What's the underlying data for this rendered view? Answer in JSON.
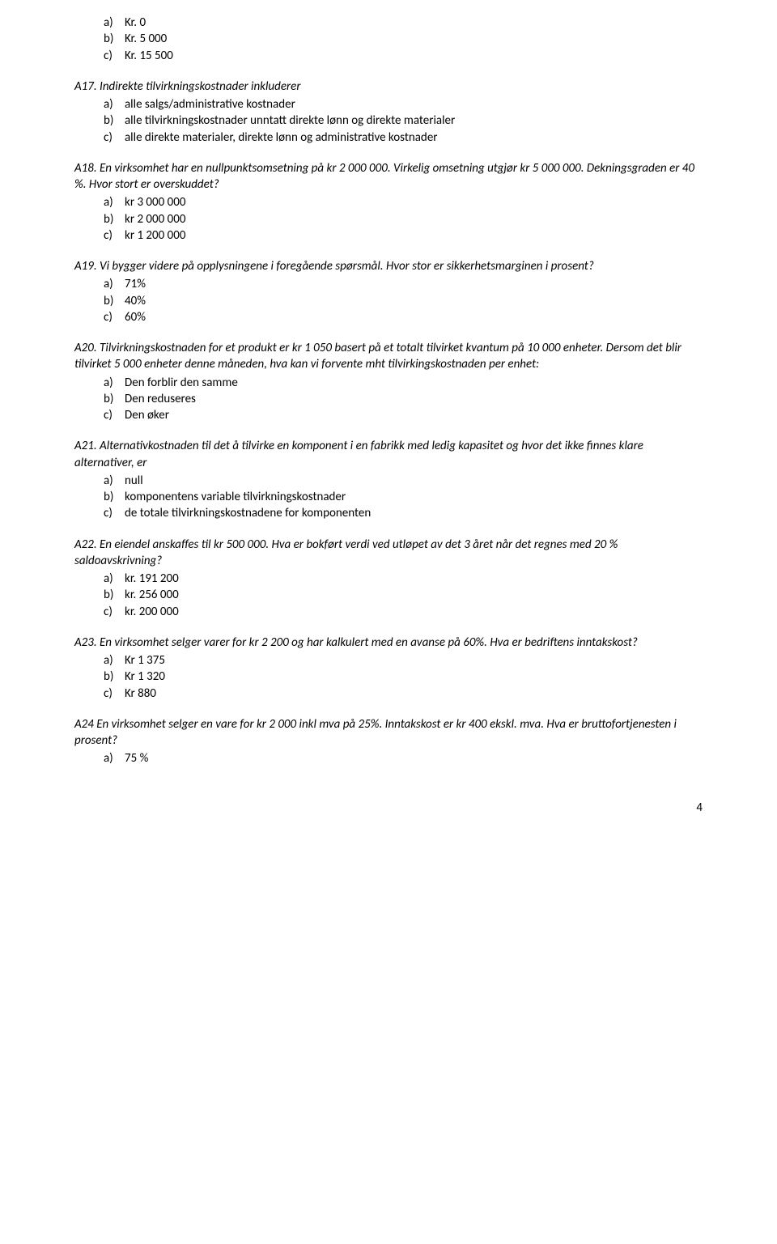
{
  "top_options": [
    {
      "letter": "a)",
      "text": "Kr. 0"
    },
    {
      "letter": "b)",
      "text": "Kr. 5 000"
    },
    {
      "letter": "c)",
      "text": "Kr. 15 500"
    }
  ],
  "questions": [
    {
      "intro": "A17. Indirekte tilvirkningskostnader inkluderer",
      "options": [
        {
          "letter": "a)",
          "text": "alle salgs/administrative kostnader"
        },
        {
          "letter": "b)",
          "text": "alle tilvirkningskostnader unntatt direkte lønn og direkte materialer"
        },
        {
          "letter": "c)",
          "text": "alle direkte materialer, direkte lønn og administrative kostnader"
        }
      ]
    },
    {
      "intro": "A18. En virksomhet har en nullpunktsomsetning på kr 2 000 000. Virkelig omsetning utgjør kr 5 000 000. Dekningsgraden er 40 %. Hvor stort er overskuddet?",
      "options": [
        {
          "letter": "a)",
          "text": "kr 3 000 000"
        },
        {
          "letter": "b)",
          "text": "kr 2 000 000"
        },
        {
          "letter": "c)",
          "text": "kr 1 200 000"
        }
      ]
    },
    {
      "intro": "A19. Vi bygger videre på opplysningene i foregående spørsmål. Hvor stor er sikkerhetsmarginen i prosent?",
      "options": [
        {
          "letter": "a)",
          "text": "71%"
        },
        {
          "letter": "b)",
          "text": "40%"
        },
        {
          "letter": "c)",
          "text": "60%"
        }
      ]
    },
    {
      "intro": "A20. Tilvirkningskostnaden for et produkt er kr 1 050 basert på et totalt tilvirket kvantum på 10 000 enheter. Dersom det blir tilvirket 5 000 enheter denne måneden, hva kan vi forvente mht tilvirkingskostnaden per enhet:",
      "options": [
        {
          "letter": "a)",
          "text": "Den forblir den samme"
        },
        {
          "letter": "b)",
          "text": "Den reduseres"
        },
        {
          "letter": "c)",
          "text": "Den øker"
        }
      ]
    },
    {
      "intro": "A21. Alternativkostnaden til det å tilvirke en komponent i en fabrikk med ledig kapasitet og hvor det ikke finnes klare alternativer, er",
      "options": [
        {
          "letter": "a)",
          "text": "null"
        },
        {
          "letter": "b)",
          "text": "komponentens variable tilvirkningskostnader"
        },
        {
          "letter": "c)",
          "text": "de totale tilvirkningskostnadene for komponenten"
        }
      ]
    },
    {
      "intro": "A22. En eiendel anskaffes til kr 500 000. Hva er bokført verdi ved utløpet av det 3 året når det regnes med 20 % saldoavskrivning?",
      "options": [
        {
          "letter": "a)",
          "text": "kr. 191 200"
        },
        {
          "letter": "b)",
          "text": "kr. 256 000"
        },
        {
          "letter": "c)",
          "text": "kr. 200 000"
        }
      ]
    },
    {
      "intro": "A23. En virksomhet selger varer for kr 2 200 og har kalkulert med en avanse på 60%. Hva er bedriftens inntakskost?",
      "options": [
        {
          "letter": "a)",
          "text": "Kr 1 375"
        },
        {
          "letter": "b)",
          "text": "Kr 1 320"
        },
        {
          "letter": "c)",
          "text": "Kr 880"
        }
      ]
    },
    {
      "intro": "A24 En virksomhet selger en vare for kr 2 000 inkl mva på 25%. Inntakskost er kr 400 ekskl. mva. Hva er bruttofortjenesten i prosent?",
      "options": [
        {
          "letter": "a)",
          "text": "75 %"
        }
      ]
    }
  ],
  "page_number": "4"
}
